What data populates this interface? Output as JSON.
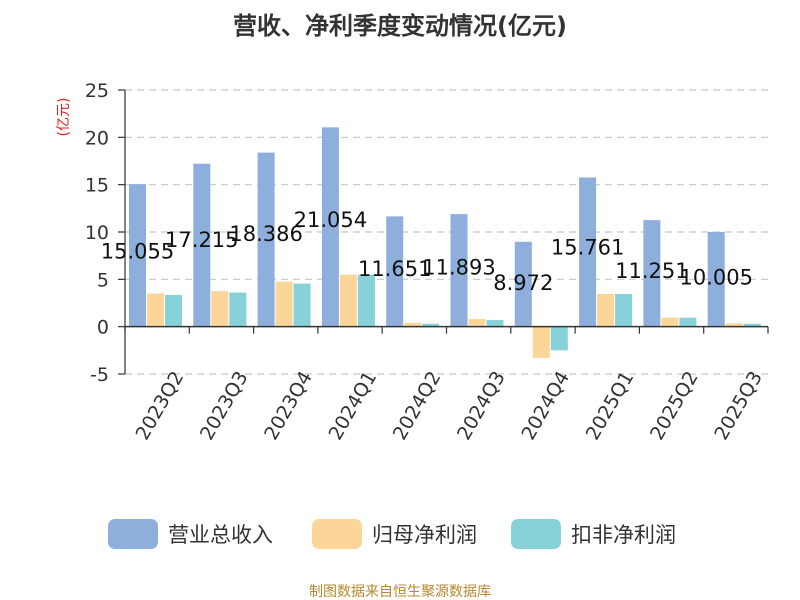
{
  "chart_data": {
    "type": "bar",
    "title": "营收、净利季度变动情况(亿元)",
    "ylabel": "(亿元)",
    "ylim": [
      -5,
      25
    ],
    "yticks": [
      25,
      20,
      15,
      10,
      5,
      0,
      -5
    ],
    "grid": true,
    "legend_position": "bottom",
    "categories": [
      "2023Q2",
      "2023Q3",
      "2023Q4",
      "2024Q1",
      "2024Q2",
      "2024Q3",
      "2024Q4",
      "2025Q1",
      "2025Q2",
      "2025Q3"
    ],
    "series": [
      {
        "name": "营业总收入",
        "color": "#8eaedc",
        "values": [
          15.055,
          17.215,
          18.386,
          21.054,
          11.651,
          11.893,
          8.972,
          15.761,
          11.251,
          10.005
        ],
        "labels": [
          "15.055",
          "17.215",
          "18.386",
          "21.054",
          "11.651",
          "11.893",
          "8.972",
          "15.761",
          "11.251",
          "10.005"
        ]
      },
      {
        "name": "归母净利润",
        "color": "#fcd699",
        "values": [
          3.5,
          3.75,
          4.75,
          5.5,
          0.4,
          0.8,
          -3.3,
          3.45,
          0.95,
          0.35
        ]
      },
      {
        "name": "扣非净利润",
        "color": "#86d2d8",
        "values": [
          3.35,
          3.6,
          4.55,
          5.5,
          0.3,
          0.7,
          -2.5,
          3.45,
          0.95,
          0.3
        ]
      }
    ]
  },
  "source_text": "制图数据来自恒生聚源数据库"
}
